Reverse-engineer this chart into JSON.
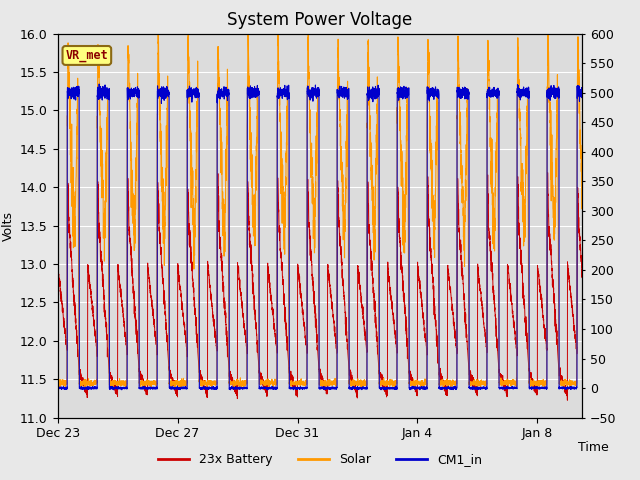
{
  "title": "System Power Voltage",
  "xlabel": "Time",
  "ylabel": "Volts",
  "ylabel_right": "",
  "ylim_left": [
    11.0,
    16.0
  ],
  "ylim_right": [
    -50,
    600
  ],
  "yticks_left": [
    11.0,
    11.5,
    12.0,
    12.5,
    13.0,
    13.5,
    14.0,
    14.5,
    15.0,
    15.5,
    16.0
  ],
  "yticks_right": [
    -50,
    0,
    50,
    100,
    150,
    200,
    250,
    300,
    350,
    400,
    450,
    500,
    550,
    600
  ],
  "xtick_labels": [
    "Dec 23",
    "Dec 27",
    "Dec 31",
    "Jan 4",
    "Jan 8"
  ],
  "xtick_positions": [
    0,
    4,
    8,
    12,
    16
  ],
  "legend_entries": [
    "23x Battery",
    "Solar",
    "CM1_in"
  ],
  "legend_colors": [
    "#cc0000",
    "#ff9900",
    "#0000cc"
  ],
  "battery_color": "#cc0000",
  "solar_color": "#ff9900",
  "cm1_color": "#0000cc",
  "fig_bg_color": "#e8e8e8",
  "plot_bg_color": "#dcdcdc",
  "grid_color": "#ffffff",
  "vr_met_label": "VR_met",
  "vr_met_fg": "#8b0000",
  "vr_met_bg": "#ffff80",
  "vr_met_border": "#8b6914",
  "title_fontsize": 12,
  "axis_fontsize": 9,
  "legend_fontsize": 9,
  "total_days": 17.5,
  "day_start": 0.32,
  "day_end": 0.72,
  "battery_night_low": 11.6,
  "battery_night_slope_start": 13.0,
  "battery_night_slope_end": 11.85,
  "battery_day_peak": 14.1,
  "solar_day_base": 13.3,
  "solar_day_peak": 15.9,
  "solar_night_low": 11.45,
  "cm1_day_val": 500,
  "cm1_night_val": 0
}
